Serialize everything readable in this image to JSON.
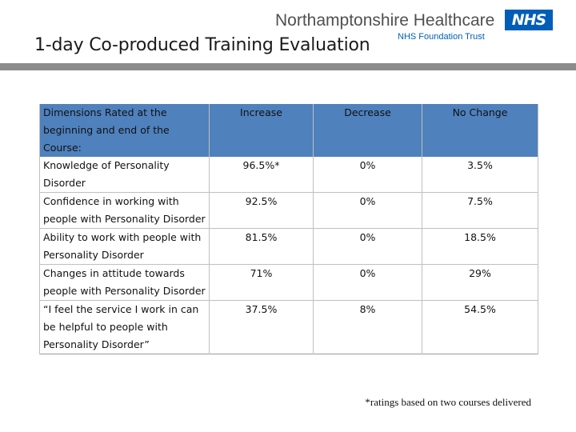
{
  "header": {
    "org_name": "Northamptonshire Healthcare",
    "org_subtitle": "NHS Foundation Trust",
    "logo_text": "NHS",
    "title": "1-day Co-produced Training Evaluation"
  },
  "table": {
    "columns": [
      "Dimensions Rated at the beginning and end of the Course:",
      "Increase",
      "Decrease",
      "No Change"
    ],
    "rows": [
      {
        "dimension": "Knowledge of Personality Disorder",
        "increase": "96.5%*",
        "decrease": "0%",
        "no_change": "3.5%"
      },
      {
        "dimension": "Confidence in working with people with Personality Disorder",
        "increase": "92.5%",
        "decrease": "0%",
        "no_change": "7.5%"
      },
      {
        "dimension": "Ability to work with people with Personality Disorder",
        "increase": "81.5%",
        "decrease": "0%",
        "no_change": "18.5%"
      },
      {
        "dimension": "Changes in attitude towards people with Personality Disorder",
        "increase": "71%",
        "decrease": "0%",
        "no_change": "29%"
      },
      {
        "dimension": "“I feel the service I work in can be helpful to people with Personality Disorder”",
        "increase": "37.5%",
        "decrease": "8%",
        "no_change": "54.5%"
      }
    ]
  },
  "footnote": "*ratings based on two courses delivered",
  "colors": {
    "header_fill": "#4f81bd",
    "nhs_blue": "#005eb8",
    "title_rule": "#8c8c8c"
  }
}
